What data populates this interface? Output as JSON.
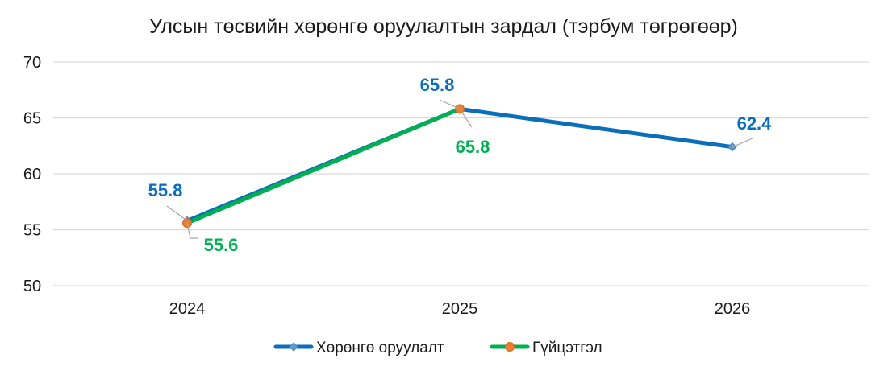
{
  "chart_data": {
    "type": "line",
    "title": "Улсын төсвийн хөрөнгө оруулалтын зардал (тэрбум төгрөгөөр)",
    "xlabel": "",
    "ylabel": "",
    "categories": [
      "2024",
      "2025",
      "2026"
    ],
    "ylim": [
      50,
      70
    ],
    "yticks": [
      50,
      55,
      60,
      65,
      70
    ],
    "grid": true,
    "legend_position": "bottom",
    "series": [
      {
        "name": "Хөрөнгө оруулалт",
        "values": [
          55.8,
          65.8,
          62.4
        ],
        "labels": [
          "55.8",
          "65.8",
          "62.4"
        ],
        "color": "#0a6ebd",
        "marker": "diamond",
        "marker_color": "#5b9bd5"
      },
      {
        "name": "Гүйцэтгэл",
        "values": [
          55.6,
          65.8,
          null
        ],
        "labels": [
          "55.6",
          "65.8",
          ""
        ],
        "color": "#00b050",
        "marker": "circle",
        "marker_color": "#ed7d31"
      }
    ]
  }
}
